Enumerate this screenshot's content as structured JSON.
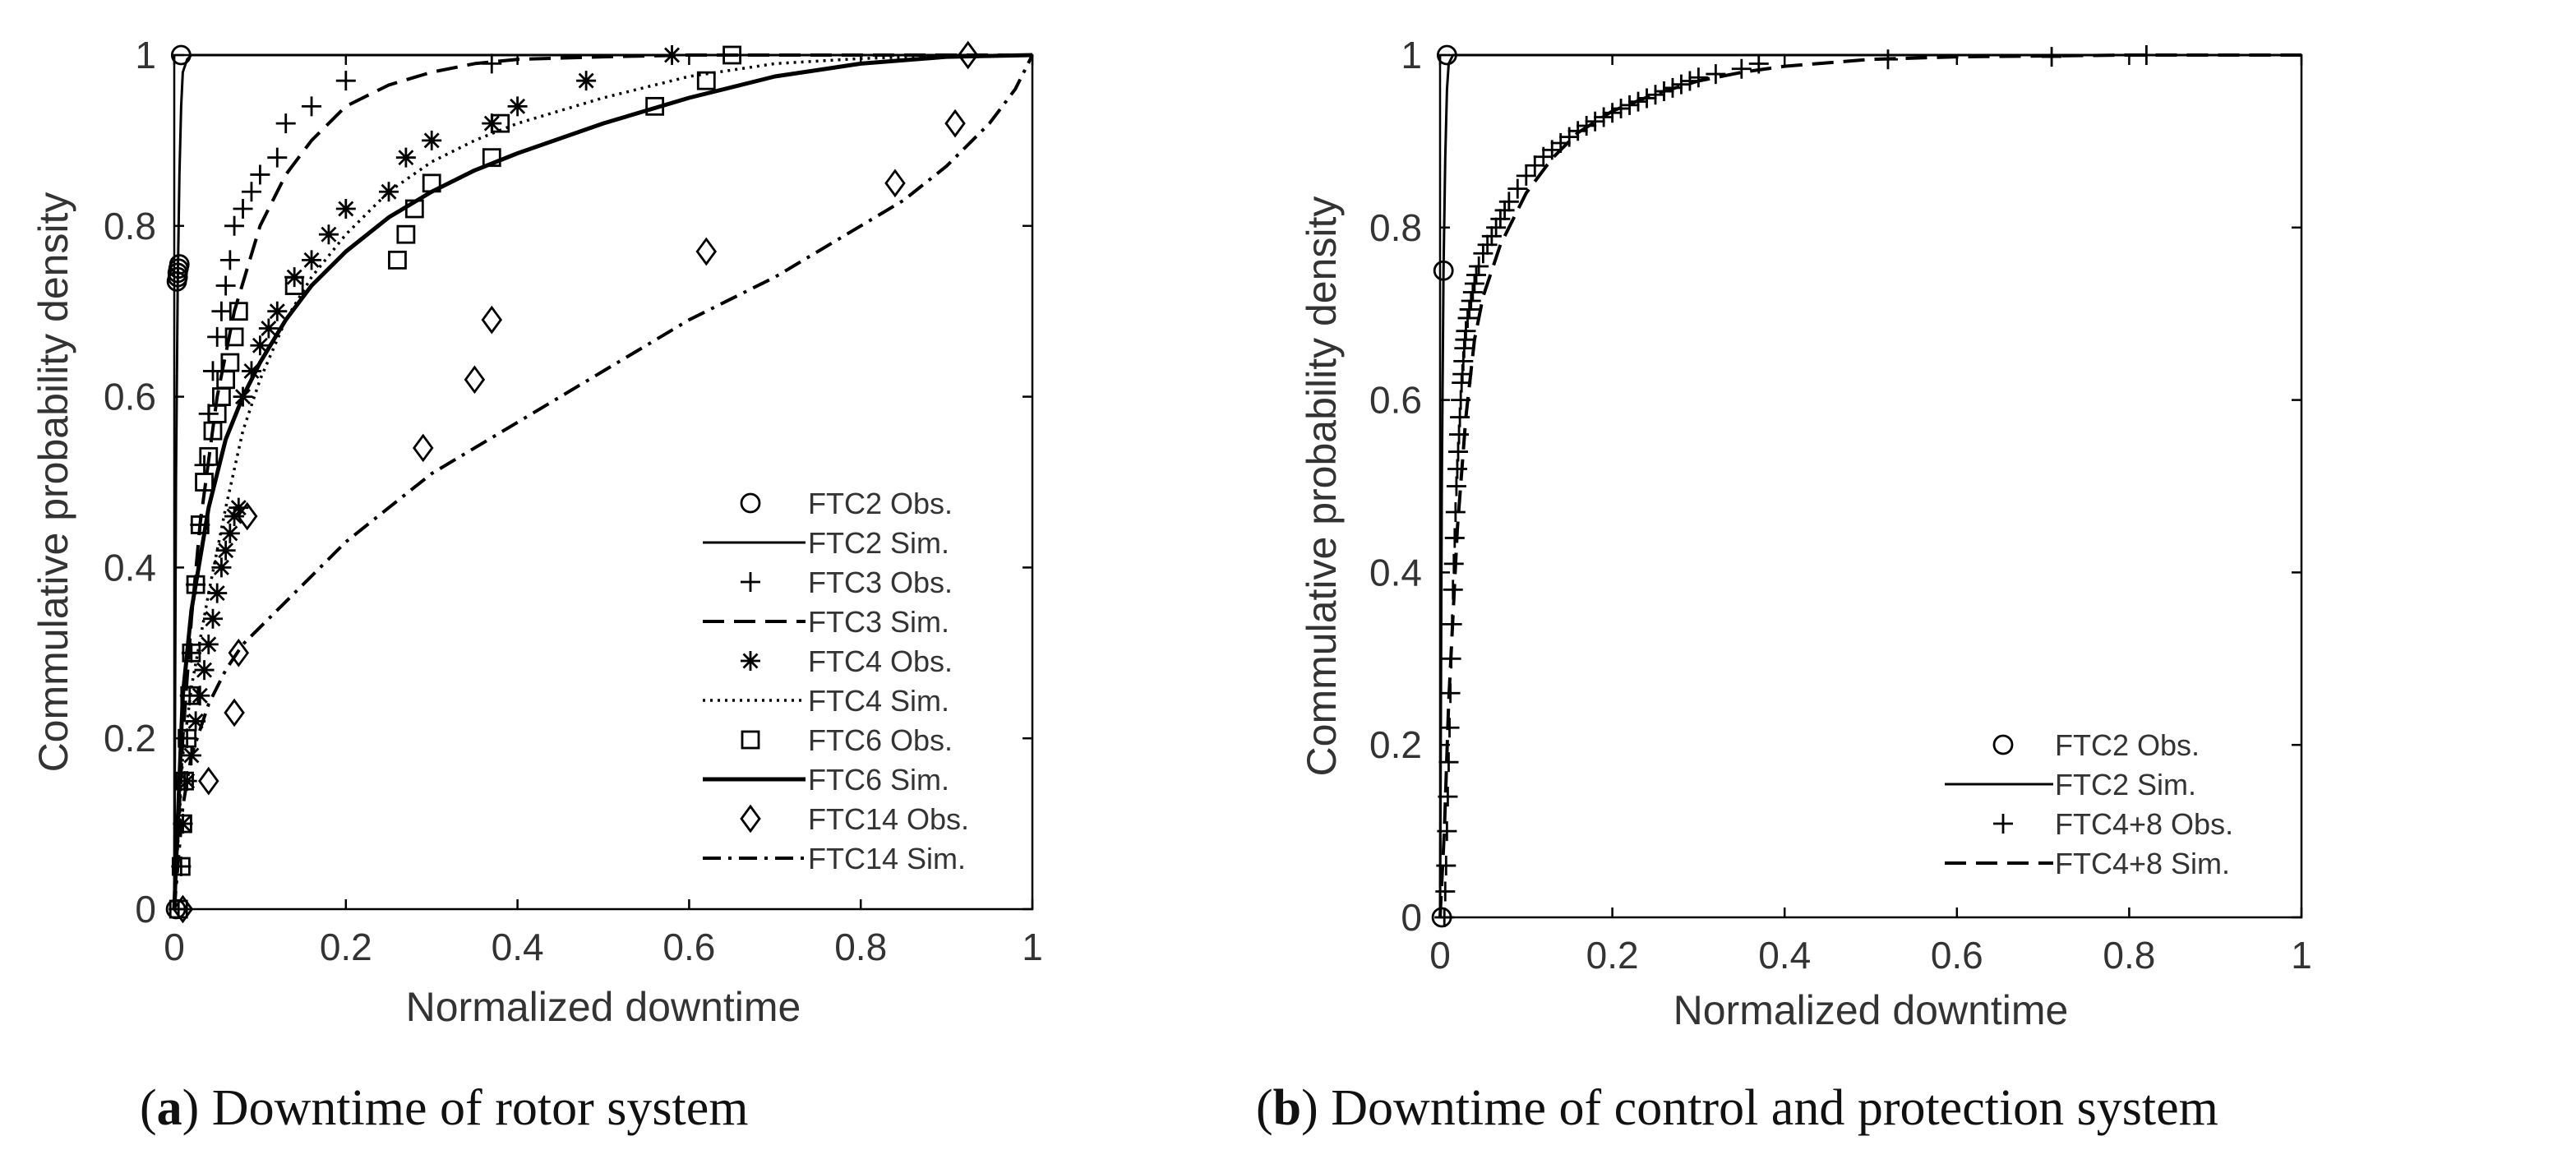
{
  "colors": {
    "ink": "#000000",
    "axis_text": "#333333"
  },
  "chart_data": [
    {
      "id": "a",
      "type": "line",
      "caption_letter": "a",
      "caption_text": ") Downtime of rotor system",
      "xlabel": "Normalized downtime",
      "ylabel": "Commulative probability density",
      "xlim": [
        0,
        1
      ],
      "ylim": [
        0,
        1
      ],
      "xticks": [
        "0",
        "0.2",
        "0.4",
        "0.6",
        "0.8",
        "1"
      ],
      "yticks": [
        "0",
        "0.2",
        "0.4",
        "0.6",
        "0.8",
        "1"
      ],
      "grid": false,
      "legend_placement": "right",
      "series": [
        {
          "name": "FTC2 Obs.",
          "marker": "circle",
          "line": "none",
          "x": [
            0.002,
            0.003,
            0.004,
            0.004,
            0.005,
            0.006,
            0.008
          ],
          "y": [
            0,
            0.735,
            0.74,
            0.745,
            0.75,
            0.755,
            1.0
          ]
        },
        {
          "name": "FTC2 Sim.",
          "marker": "none",
          "line": "solid",
          "x": [
            0,
            0.002,
            0.004,
            0.006,
            0.008,
            0.01,
            0.015,
            0.02,
            1
          ],
          "y": [
            0,
            0.5,
            0.73,
            0.86,
            0.94,
            0.98,
            0.995,
            1.0,
            1.0
          ]
        },
        {
          "name": "FTC3 Obs.",
          "marker": "plus",
          "line": "none",
          "x": [
            0.005,
            0.008,
            0.01,
            0.012,
            0.015,
            0.018,
            0.02,
            0.025,
            0.03,
            0.035,
            0.04,
            0.045,
            0.05,
            0.055,
            0.06,
            0.065,
            0.07,
            0.08,
            0.09,
            0.1,
            0.12,
            0.13,
            0.16,
            0.2,
            0.37
          ],
          "y": [
            0.0,
            0.05,
            0.1,
            0.15,
            0.2,
            0.25,
            0.3,
            0.38,
            0.45,
            0.52,
            0.58,
            0.63,
            0.67,
            0.7,
            0.73,
            0.76,
            0.8,
            0.82,
            0.84,
            0.86,
            0.88,
            0.92,
            0.94,
            0.97,
            0.99
          ]
        },
        {
          "name": "FTC3 Sim.",
          "marker": "none",
          "line": "dashed",
          "x": [
            0,
            0.01,
            0.02,
            0.03,
            0.05,
            0.07,
            0.1,
            0.13,
            0.16,
            0.2,
            0.25,
            0.3,
            0.35,
            0.4,
            0.5,
            0.6,
            1
          ],
          "y": [
            0,
            0.2,
            0.34,
            0.45,
            0.6,
            0.7,
            0.8,
            0.86,
            0.9,
            0.94,
            0.965,
            0.98,
            0.99,
            0.995,
            0.998,
            1.0,
            1.0
          ]
        },
        {
          "name": "FTC4 Obs.",
          "marker": "asterisk",
          "line": "none",
          "x": [
            0.01,
            0.015,
            0.02,
            0.025,
            0.03,
            0.035,
            0.04,
            0.045,
            0.05,
            0.055,
            0.06,
            0.065,
            0.07,
            0.075,
            0.08,
            0.09,
            0.1,
            0.11,
            0.12,
            0.14,
            0.16,
            0.18,
            0.2,
            0.25,
            0.27,
            0.3,
            0.37,
            0.4,
            0.48,
            0.58
          ],
          "y": [
            0.1,
            0.15,
            0.18,
            0.22,
            0.25,
            0.28,
            0.31,
            0.34,
            0.37,
            0.4,
            0.42,
            0.44,
            0.46,
            0.47,
            0.6,
            0.63,
            0.66,
            0.68,
            0.7,
            0.74,
            0.76,
            0.79,
            0.82,
            0.84,
            0.88,
            0.9,
            0.92,
            0.94,
            0.97,
            1.0
          ]
        },
        {
          "name": "FTC4 Sim.",
          "marker": "none",
          "line": "dotted",
          "x": [
            0,
            0.01,
            0.02,
            0.04,
            0.06,
            0.08,
            0.1,
            0.13,
            0.16,
            0.2,
            0.25,
            0.3,
            0.35,
            0.4,
            0.5,
            0.6,
            0.7,
            0.8,
            0.9,
            1
          ],
          "y": [
            0,
            0.18,
            0.26,
            0.37,
            0.47,
            0.56,
            0.62,
            0.69,
            0.74,
            0.79,
            0.84,
            0.875,
            0.9,
            0.92,
            0.95,
            0.975,
            0.99,
            0.996,
            0.999,
            1.0
          ]
        },
        {
          "name": "FTC6 Obs.",
          "marker": "square",
          "line": "none",
          "x": [
            0.005,
            0.008,
            0.01,
            0.012,
            0.015,
            0.018,
            0.02,
            0.025,
            0.03,
            0.035,
            0.04,
            0.045,
            0.05,
            0.055,
            0.06,
            0.065,
            0.07,
            0.075,
            0.14,
            0.26,
            0.27,
            0.28,
            0.3,
            0.37,
            0.38,
            0.56,
            0.62,
            0.65
          ],
          "y": [
            0.0,
            0.05,
            0.1,
            0.15,
            0.2,
            0.25,
            0.3,
            0.38,
            0.45,
            0.5,
            0.53,
            0.56,
            0.58,
            0.6,
            0.62,
            0.64,
            0.67,
            0.7,
            0.73,
            0.76,
            0.79,
            0.82,
            0.85,
            0.88,
            0.92,
            0.94,
            0.97,
            1.0
          ]
        },
        {
          "name": "FTC6 Sim.",
          "marker": "none",
          "line": "solid-bold",
          "x": [
            0,
            0.01,
            0.02,
            0.04,
            0.06,
            0.08,
            0.1,
            0.13,
            0.16,
            0.2,
            0.25,
            0.3,
            0.35,
            0.4,
            0.5,
            0.6,
            0.7,
            0.8,
            0.9,
            1
          ],
          "y": [
            0,
            0.25,
            0.35,
            0.47,
            0.55,
            0.6,
            0.64,
            0.69,
            0.73,
            0.77,
            0.81,
            0.84,
            0.865,
            0.885,
            0.92,
            0.95,
            0.975,
            0.99,
            0.998,
            1.0
          ]
        },
        {
          "name": "FTC14 Obs.",
          "marker": "diamond",
          "line": "none",
          "x": [
            0.01,
            0.04,
            0.07,
            0.075,
            0.085,
            0.29,
            0.35,
            0.37,
            0.62,
            0.84,
            0.91,
            0.925
          ],
          "y": [
            0.0,
            0.15,
            0.23,
            0.3,
            0.46,
            0.54,
            0.62,
            0.69,
            0.77,
            0.85,
            0.92,
            1.0
          ]
        },
        {
          "name": "FTC14 Sim.",
          "marker": "none",
          "line": "dashdot",
          "x": [
            0,
            0.01,
            0.02,
            0.04,
            0.06,
            0.08,
            0.1,
            0.15,
            0.2,
            0.3,
            0.4,
            0.5,
            0.6,
            0.7,
            0.8,
            0.85,
            0.9,
            0.95,
            0.98,
            1
          ],
          "y": [
            0,
            0.12,
            0.18,
            0.24,
            0.28,
            0.31,
            0.33,
            0.38,
            0.43,
            0.51,
            0.57,
            0.63,
            0.69,
            0.74,
            0.8,
            0.83,
            0.87,
            0.92,
            0.96,
            1.0
          ]
        }
      ]
    },
    {
      "id": "b",
      "type": "line",
      "caption_letter": "b",
      "caption_text": ") Downtime of control and protection system",
      "xlabel": "Normalized downtime",
      "ylabel": "Commulative probability density",
      "xlim": [
        0,
        1
      ],
      "ylim": [
        0,
        1
      ],
      "xticks": [
        "0",
        "0.2",
        "0.4",
        "0.6",
        "0.8",
        "1"
      ],
      "yticks": [
        "0",
        "0.2",
        "0.4",
        "0.6",
        "0.8",
        "1"
      ],
      "grid": false,
      "legend_placement": "bottom-right",
      "series": [
        {
          "name": "FTC2 Obs.",
          "marker": "circle",
          "line": "none",
          "x": [
            0.002,
            0.004,
            0.008
          ],
          "y": [
            0,
            0.75,
            1.0
          ]
        },
        {
          "name": "FTC2 Sim.",
          "marker": "none",
          "line": "solid",
          "x": [
            0,
            0.002,
            0.004,
            0.006,
            0.008,
            0.01,
            0.015,
            1
          ],
          "y": [
            0,
            0.5,
            0.75,
            0.88,
            0.96,
            0.99,
            1.0,
            1.0
          ]
        },
        {
          "name": "FTC4+8 Obs.",
          "marker": "plus",
          "line": "none",
          "x": [
            0.005,
            0.006,
            0.007,
            0.008,
            0.009,
            0.01,
            0.011,
            0.012,
            0.013,
            0.014,
            0.015,
            0.016,
            0.017,
            0.018,
            0.019,
            0.02,
            0.021,
            0.022,
            0.023,
            0.024,
            0.025,
            0.026,
            0.027,
            0.028,
            0.029,
            0.03,
            0.032,
            0.034,
            0.036,
            0.038,
            0.04,
            0.042,
            0.045,
            0.05,
            0.055,
            0.06,
            0.065,
            0.07,
            0.075,
            0.08,
            0.09,
            0.1,
            0.11,
            0.12,
            0.13,
            0.14,
            0.15,
            0.16,
            0.17,
            0.18,
            0.19,
            0.2,
            0.21,
            0.22,
            0.23,
            0.24,
            0.25,
            0.26,
            0.27,
            0.28,
            0.29,
            0.3,
            0.32,
            0.35,
            0.37,
            0.52,
            0.71,
            0.82
          ],
          "y": [
            0.0,
            0.03,
            0.06,
            0.1,
            0.14,
            0.18,
            0.22,
            0.26,
            0.3,
            0.34,
            0.38,
            0.41,
            0.44,
            0.47,
            0.5,
            0.52,
            0.54,
            0.56,
            0.58,
            0.6,
            0.62,
            0.63,
            0.645,
            0.66,
            0.67,
            0.68,
            0.695,
            0.705,
            0.715,
            0.725,
            0.735,
            0.745,
            0.755,
            0.77,
            0.78,
            0.79,
            0.8,
            0.81,
            0.82,
            0.83,
            0.845,
            0.86,
            0.872,
            0.882,
            0.89,
            0.898,
            0.905,
            0.912,
            0.918,
            0.923,
            0.928,
            0.933,
            0.938,
            0.942,
            0.946,
            0.95,
            0.954,
            0.958,
            0.962,
            0.966,
            0.97,
            0.974,
            0.978,
            0.984,
            0.99,
            0.995,
            0.998,
            1.0
          ]
        },
        {
          "name": "FTC4+8 Sim.",
          "marker": "none",
          "line": "dashed",
          "x": [
            0,
            0.005,
            0.01,
            0.02,
            0.03,
            0.04,
            0.05,
            0.07,
            0.1,
            0.13,
            0.16,
            0.2,
            0.25,
            0.3,
            0.35,
            0.4,
            0.5,
            0.6,
            0.8,
            1
          ],
          "y": [
            0,
            0.1,
            0.25,
            0.45,
            0.58,
            0.67,
            0.72,
            0.78,
            0.84,
            0.88,
            0.91,
            0.935,
            0.955,
            0.97,
            0.98,
            0.987,
            0.995,
            0.998,
            1.0,
            1.0
          ]
        }
      ]
    }
  ]
}
